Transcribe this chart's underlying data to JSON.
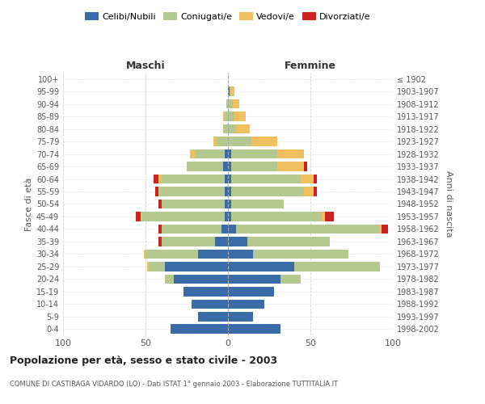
{
  "age_groups": [
    "0-4",
    "5-9",
    "10-14",
    "15-19",
    "20-24",
    "25-29",
    "30-34",
    "35-39",
    "40-44",
    "45-49",
    "50-54",
    "55-59",
    "60-64",
    "65-69",
    "70-74",
    "75-79",
    "80-84",
    "85-89",
    "90-94",
    "95-99",
    "100+"
  ],
  "birth_years": [
    "1998-2002",
    "1993-1997",
    "1988-1992",
    "1983-1987",
    "1978-1982",
    "1973-1977",
    "1968-1972",
    "1963-1967",
    "1958-1962",
    "1953-1957",
    "1948-1952",
    "1943-1947",
    "1938-1942",
    "1933-1937",
    "1928-1932",
    "1923-1927",
    "1918-1922",
    "1913-1917",
    "1908-1912",
    "1903-1907",
    "≤ 1902"
  ],
  "male_celibi": [
    35,
    18,
    22,
    27,
    33,
    38,
    18,
    8,
    4,
    2,
    2,
    2,
    2,
    3,
    2,
    0,
    0,
    0,
    0,
    0,
    0
  ],
  "male_coniugati": [
    0,
    0,
    0,
    0,
    5,
    10,
    32,
    32,
    36,
    50,
    38,
    40,
    38,
    22,
    18,
    7,
    3,
    2,
    1,
    0,
    0
  ],
  "male_vedovi": [
    0,
    0,
    0,
    0,
    0,
    1,
    1,
    0,
    0,
    1,
    0,
    0,
    2,
    0,
    3,
    2,
    0,
    1,
    0,
    0,
    0
  ],
  "male_divorziati": [
    0,
    0,
    0,
    0,
    0,
    0,
    0,
    2,
    2,
    3,
    2,
    2,
    3,
    0,
    0,
    0,
    0,
    0,
    0,
    0,
    0
  ],
  "female_celibi": [
    32,
    15,
    22,
    28,
    32,
    40,
    15,
    12,
    5,
    2,
    2,
    2,
    2,
    2,
    2,
    0,
    0,
    0,
    0,
    1,
    0
  ],
  "female_coniugati": [
    0,
    0,
    0,
    0,
    12,
    52,
    58,
    50,
    87,
    55,
    32,
    44,
    42,
    28,
    28,
    14,
    5,
    4,
    3,
    1,
    0
  ],
  "female_vedovi": [
    0,
    0,
    0,
    0,
    0,
    0,
    0,
    0,
    1,
    2,
    0,
    6,
    8,
    16,
    16,
    16,
    8,
    7,
    4,
    2,
    0
  ],
  "female_divorziati": [
    0,
    0,
    0,
    0,
    0,
    0,
    0,
    0,
    4,
    5,
    0,
    2,
    2,
    2,
    0,
    0,
    0,
    0,
    0,
    0,
    0
  ],
  "colors": {
    "celibi": "#3a6ca8",
    "coniugati": "#b5c98e",
    "vedovi": "#f0c060",
    "divorziati": "#cc2222"
  },
  "title": "Popolazione per età, sesso e stato civile - 2003",
  "subtitle": "COMUNE DI CASTIRAGA VIDARDO (LO) - Dati ISTAT 1° gennaio 2003 - Elaborazione TUTTITALIA.IT",
  "xlabel_left": "Maschi",
  "xlabel_right": "Femmine",
  "ylabel_left": "Fasce di età",
  "ylabel_right": "Anni di nascita",
  "xlim": 100,
  "background_color": "#ffffff",
  "grid_color": "#cccccc"
}
